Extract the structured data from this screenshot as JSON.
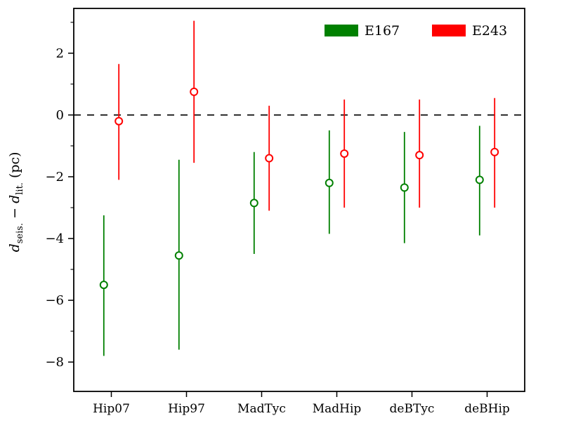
{
  "chart_data": {
    "type": "scatter",
    "subtype": "errorbar",
    "title": "",
    "xlabel": "",
    "ylabel": "d_seis. − d_lit. (pc)",
    "ylabel_segments": [
      {
        "t": "d",
        "style": "italic"
      },
      {
        "t": "seis.",
        "style": "sub"
      },
      {
        "t": " − ",
        "style": "plain"
      },
      {
        "t": "d",
        "style": "italic"
      },
      {
        "t": "lit.",
        "style": "sub"
      },
      {
        "t": " (pc)",
        "style": "plain"
      }
    ],
    "categories": [
      "Hip07",
      "Hip97",
      "MadTyc",
      "MadHip",
      "deBTyc",
      "deBHip"
    ],
    "xlim": [
      -0.5,
      5.5
    ],
    "ylim": [
      -8.95,
      3.45
    ],
    "y_major_ticks": {
      "values": [
        2,
        0,
        -2,
        -4,
        -6,
        -8
      ],
      "labels": [
        "2",
        "0",
        "−2",
        "−4",
        "−6",
        "−8"
      ]
    },
    "y_minor_ticks": [
      3,
      1,
      -1,
      -3,
      -5,
      -7
    ],
    "grid": false,
    "zero_line": {
      "y": 0,
      "style": "dashed",
      "color": "#000000"
    },
    "legend": {
      "position": "upper-right",
      "frame": false
    },
    "series": [
      {
        "name": "E167",
        "color": "#008000",
        "marker": "open-circle",
        "x_offset": -0.1,
        "y": [
          -5.5,
          -4.55,
          -2.85,
          -2.2,
          -2.35,
          -2.1
        ],
        "y_hi": [
          -3.25,
          -1.45,
          -1.2,
          -0.5,
          -0.55,
          -0.35
        ],
        "y_lo": [
          -7.8,
          -7.6,
          -4.5,
          -3.85,
          -4.15,
          -3.9
        ]
      },
      {
        "name": "E243",
        "color": "#ff0000",
        "marker": "open-circle",
        "x_offset": 0.1,
        "y": [
          -0.2,
          0.75,
          -1.4,
          -1.25,
          -1.3,
          -1.2
        ],
        "y_hi": [
          1.65,
          3.05,
          0.3,
          0.5,
          0.5,
          0.55
        ],
        "y_lo": [
          -2.1,
          -1.55,
          -3.1,
          -3.0,
          -3.0,
          -3.0
        ]
      }
    ]
  }
}
